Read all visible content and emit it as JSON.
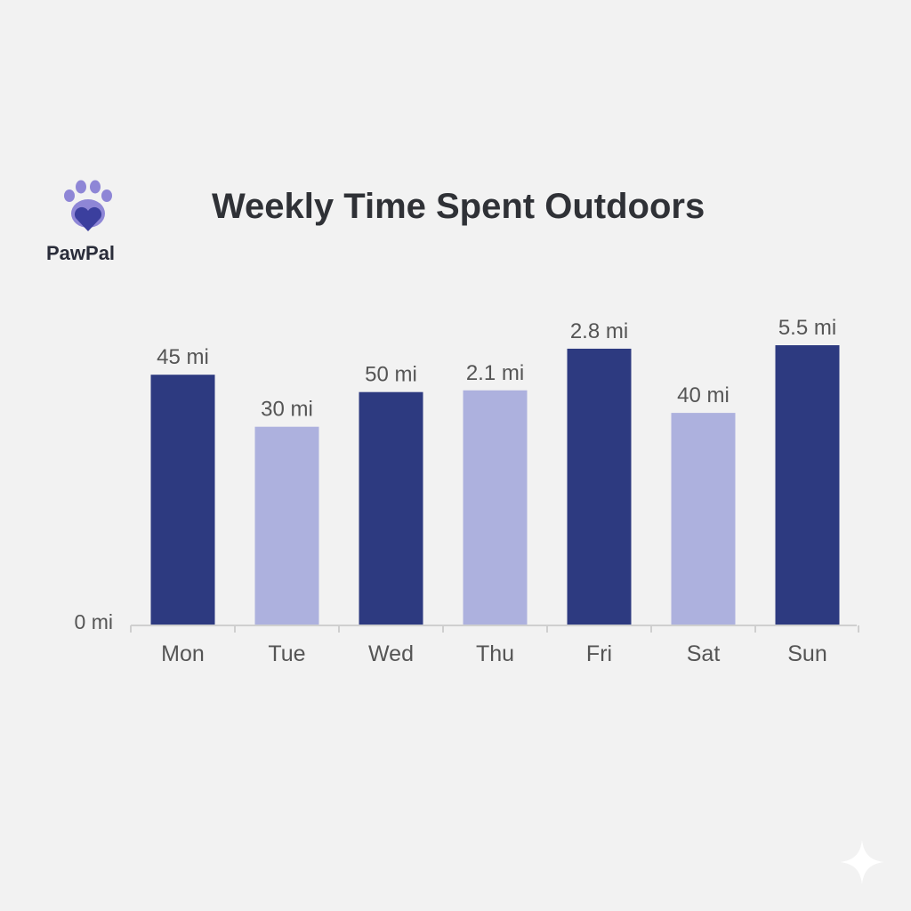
{
  "brand": {
    "name": "PawPal",
    "logo_icon": "paw-heart-icon"
  },
  "colors": {
    "dark": "#2d3a80",
    "light": "#adb1de",
    "text": "#555555",
    "axis": "#cfcfcf"
  },
  "chart_data": {
    "type": "bar",
    "title": "Weekly Time Spent Outdoors",
    "xlabel": "",
    "ylabel": "",
    "categories": [
      "Mon",
      "Tue",
      "Wed",
      "Thu",
      "Fri",
      "Sat",
      "Sun"
    ],
    "data_labels": [
      "45 mi",
      "30 mi",
      "50 mi",
      "2.1 mi",
      "2.8 mi",
      "40 mi",
      "5.5 mi"
    ],
    "bar_level": [
      0.72,
      0.57,
      0.67,
      0.675,
      0.795,
      0.61,
      0.805
    ],
    "bar_shade": [
      "dark",
      "light",
      "dark",
      "light",
      "dark",
      "light",
      "dark"
    ],
    "y_tick_labels": [
      "0 mi"
    ],
    "grid": false,
    "legend": "none"
  }
}
